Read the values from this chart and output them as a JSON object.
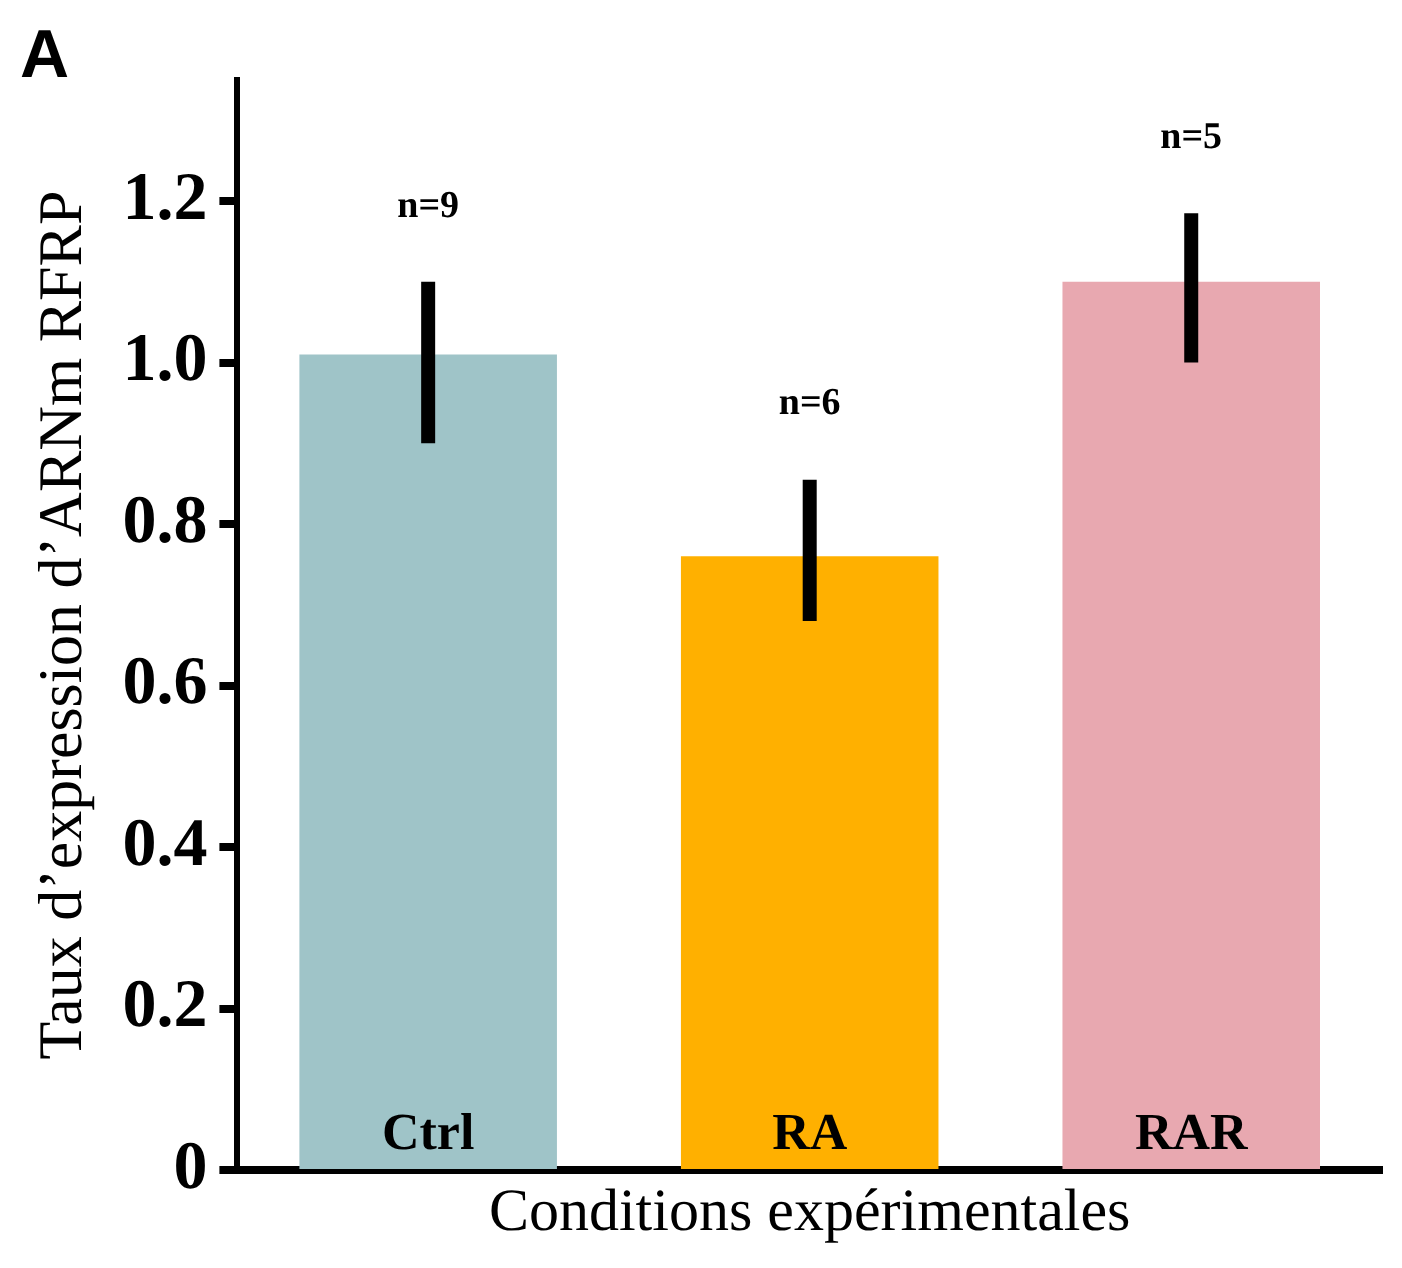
{
  "chart_data": {
    "type": "bar",
    "ylabel": "Taux d’expression d’ARNm RFRP",
    "xlabel": "Conditions expérimentales",
    "categories": [
      "Ctrl",
      "RA",
      "RAR"
    ],
    "values": [
      1.01,
      0.76,
      1.1
    ],
    "colors": [
      "#9fc4c8",
      "#ffb000",
      "#e8a8b0"
    ],
    "errors": [
      [
        0.9,
        1.1
      ],
      [
        0.68,
        0.855
      ],
      [
        1.0,
        1.185
      ]
    ],
    "ylim": [
      0,
      1.35
    ],
    "yticks": [
      0,
      {
        "value": 0.2,
        "label": "0.2"
      },
      {
        "value": 0.4,
        "label": "0.4"
      },
      {
        "value": 0.6,
        "label": "0.6"
      },
      {
        "value": 0.8,
        "label": "0.8"
      },
      {
        "value": 1,
        "label": "1.0"
      },
      {
        "value": 1.2,
        "label": "1.2"
      }
    ],
    "annotations": [
      "A",
      "n=9",
      "n=6",
      "n=5"
    ],
    "grid": false,
    "legend": false
  }
}
